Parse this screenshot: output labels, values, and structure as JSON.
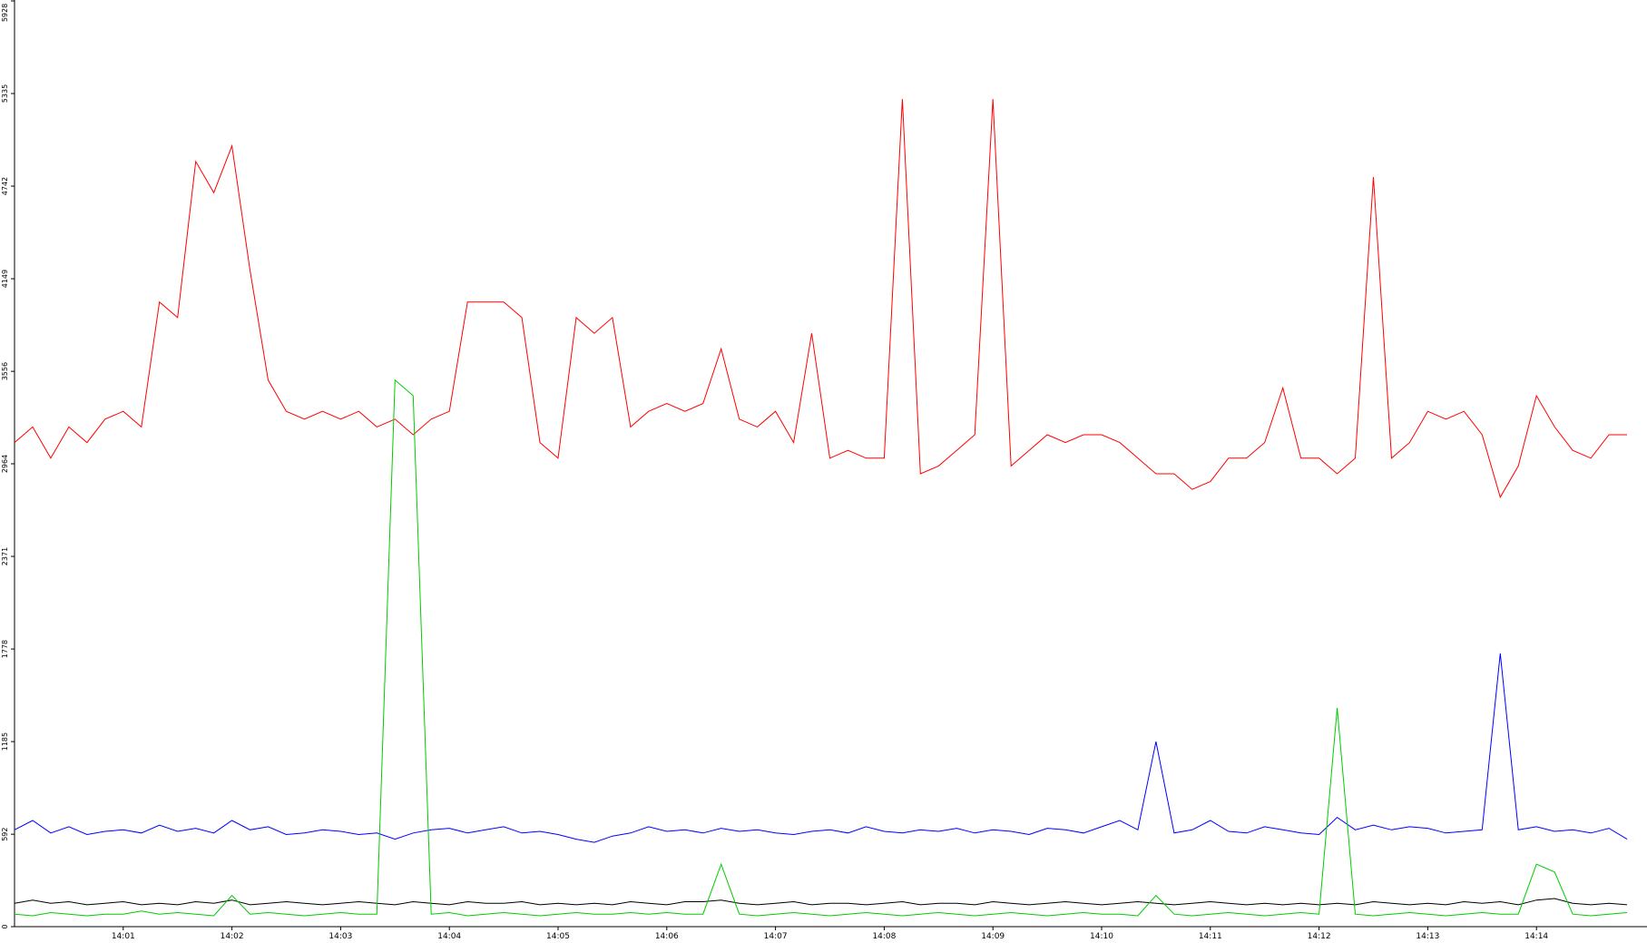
{
  "chart_data": {
    "type": "line",
    "categories": [
      null,
      null,
      null,
      null,
      null,
      null,
      "14:01",
      null,
      null,
      null,
      null,
      null,
      "14:02",
      null,
      null,
      null,
      null,
      null,
      "14:03",
      null,
      null,
      null,
      null,
      null,
      "14:04",
      null,
      null,
      null,
      null,
      null,
      "14:05",
      null,
      null,
      null,
      null,
      null,
      "14:06",
      null,
      null,
      null,
      null,
      null,
      "14:07",
      null,
      null,
      null,
      null,
      null,
      "14:08",
      null,
      null,
      null,
      null,
      null,
      "14:09",
      null,
      null,
      null,
      null,
      null,
      "14:10",
      null,
      null,
      null,
      null,
      null,
      "14:11",
      null,
      null,
      null,
      null,
      null,
      "14:12",
      null,
      null,
      null,
      null,
      null,
      "14:13",
      null,
      null,
      null,
      null,
      null,
      "14:14",
      null,
      null,
      null,
      null,
      null
    ],
    "ylim": [
      0,
      5928
    ],
    "yticks": [
      0,
      592,
      1185,
      1778,
      2371,
      2964,
      3556,
      4149,
      4742,
      5335,
      5928
    ],
    "series": [
      {
        "color": "#ff0000",
        "values": [
          3100,
          3200,
          3000,
          3200,
          3100,
          3250,
          3300,
          3200,
          4000,
          3900,
          4900,
          4700,
          5000,
          4200,
          3500,
          3300,
          3250,
          3300,
          3250,
          3300,
          3200,
          3250,
          3150,
          3250,
          3300,
          4000,
          4000,
          4000,
          3900,
          3100,
          3000,
          3900,
          3800,
          3900,
          3200,
          3300,
          3350,
          3300,
          3350,
          3700,
          3250,
          3200,
          3300,
          3100,
          3800,
          3000,
          3050,
          3000,
          3000,
          5300,
          2900,
          2950,
          3050,
          3150,
          5300,
          2950,
          3050,
          3150,
          3100,
          3150,
          3150,
          3100,
          3000,
          2900,
          2900,
          2800,
          2850,
          3000,
          3000,
          3100,
          3450,
          3000,
          3000,
          2900,
          3000,
          4800,
          3000,
          3100,
          3300,
          3250,
          3300,
          3150,
          2750,
          2950,
          3400,
          3200,
          3050,
          3000,
          3150,
          3150
        ]
      },
      {
        "color": "#0000ff",
        "values": [
          620,
          680,
          600,
          640,
          590,
          610,
          620,
          600,
          650,
          610,
          630,
          600,
          680,
          620,
          640,
          590,
          600,
          620,
          610,
          590,
          600,
          560,
          600,
          620,
          630,
          600,
          620,
          640,
          600,
          610,
          590,
          560,
          540,
          580,
          600,
          640,
          610,
          620,
          600,
          630,
          610,
          620,
          600,
          590,
          610,
          620,
          600,
          640,
          610,
          600,
          620,
          610,
          630,
          600,
          620,
          610,
          590,
          630,
          620,
          600,
          640,
          680,
          620,
          1185,
          600,
          620,
          680,
          610,
          600,
          640,
          620,
          600,
          590,
          700,
          620,
          650,
          620,
          640,
          630,
          600,
          610,
          620,
          1750,
          620,
          640,
          610,
          620,
          600,
          630,
          560
        ]
      },
      {
        "color": "#000000",
        "values": [
          150,
          170,
          150,
          160,
          140,
          150,
          160,
          140,
          150,
          140,
          160,
          150,
          170,
          140,
          150,
          160,
          150,
          140,
          150,
          160,
          150,
          140,
          160,
          150,
          140,
          160,
          150,
          150,
          160,
          140,
          150,
          140,
          150,
          140,
          160,
          150,
          140,
          160,
          160,
          170,
          150,
          140,
          150,
          160,
          140,
          150,
          150,
          140,
          150,
          160,
          140,
          150,
          150,
          140,
          160,
          150,
          140,
          150,
          160,
          150,
          140,
          150,
          160,
          150,
          140,
          150,
          160,
          150,
          140,
          150,
          140,
          150,
          140,
          150,
          140,
          160,
          150,
          140,
          150,
          140,
          160,
          150,
          160,
          140,
          170,
          180,
          150,
          140,
          150,
          140
        ]
      },
      {
        "color": "#00cc00",
        "values": [
          80,
          70,
          90,
          80,
          70,
          80,
          80,
          100,
          80,
          90,
          80,
          70,
          200,
          80,
          90,
          80,
          70,
          80,
          90,
          80,
          80,
          3500,
          3400,
          80,
          90,
          70,
          80,
          90,
          80,
          70,
          80,
          90,
          80,
          80,
          90,
          80,
          90,
          80,
          80,
          400,
          80,
          70,
          80,
          90,
          80,
          70,
          80,
          90,
          80,
          70,
          80,
          90,
          80,
          70,
          80,
          90,
          80,
          70,
          80,
          90,
          80,
          80,
          70,
          200,
          80,
          70,
          80,
          90,
          80,
          70,
          80,
          90,
          80,
          1400,
          80,
          70,
          80,
          90,
          80,
          70,
          80,
          90,
          80,
          80,
          400,
          350,
          80,
          70,
          80,
          90
        ]
      }
    ]
  }
}
